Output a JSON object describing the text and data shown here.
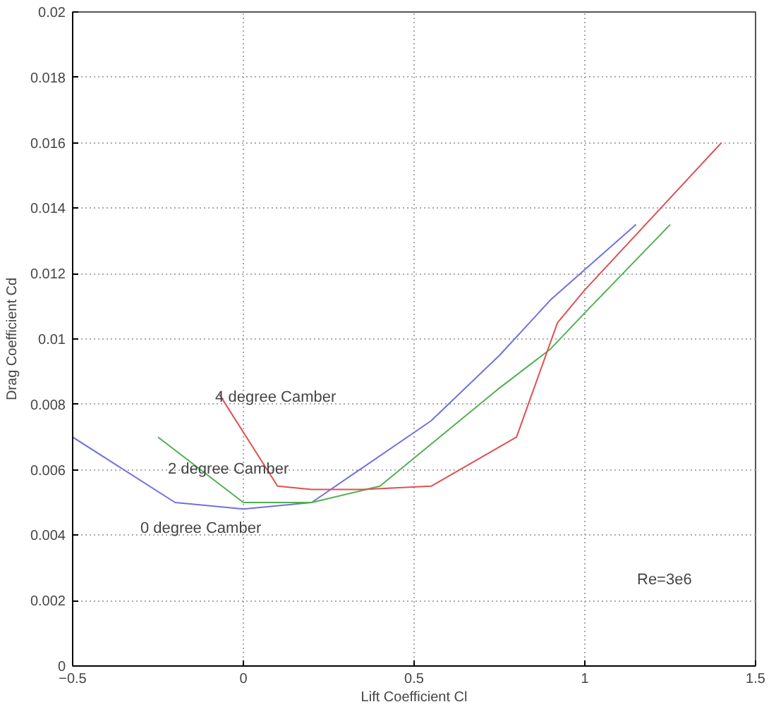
{
  "chart_data": {
    "type": "line",
    "xlabel": "Lift Coefficient Cl",
    "ylabel": "Drag Coefficient Cd",
    "xlim": [
      -0.5,
      1.5
    ],
    "ylim": [
      0,
      0.02
    ],
    "xticks": [
      -0.5,
      0,
      0.5,
      1,
      1.5
    ],
    "yticks": [
      0,
      0.002,
      0.004,
      0.006,
      0.008,
      0.01,
      0.012,
      0.014,
      0.016,
      0.018,
      0.02
    ],
    "grid": true,
    "marker": "none",
    "line_style": "solid",
    "series": [
      {
        "name": "0 degree Camber",
        "color": "#7070e0",
        "x": [
          -0.5,
          -0.2,
          0,
          0.2,
          0.55,
          0.75,
          0.9,
          1.15
        ],
        "values": [
          0.007,
          0.005,
          0.0048,
          0.005,
          0.0075,
          0.0095,
          0.0112,
          0.0135
        ]
      },
      {
        "name": "2 degree Camber",
        "color": "#50b050",
        "x": [
          -0.25,
          0,
          0.2,
          0.4,
          0.75,
          0.9,
          1.0,
          1.25
        ],
        "values": [
          0.007,
          0.005,
          0.005,
          0.0055,
          0.0085,
          0.0097,
          0.0108,
          0.0135
        ]
      },
      {
        "name": "4 degree Camber",
        "color": "#e05050",
        "x": [
          -0.07,
          0.1,
          0.2,
          0.35,
          0.55,
          0.8,
          0.92,
          1.0,
          1.4
        ],
        "values": [
          0.0083,
          0.0055,
          0.0054,
          0.0054,
          0.0055,
          0.007,
          0.0105,
          0.0115,
          0.016
        ]
      }
    ],
    "annotations": [
      "Re=3e6"
    ]
  }
}
